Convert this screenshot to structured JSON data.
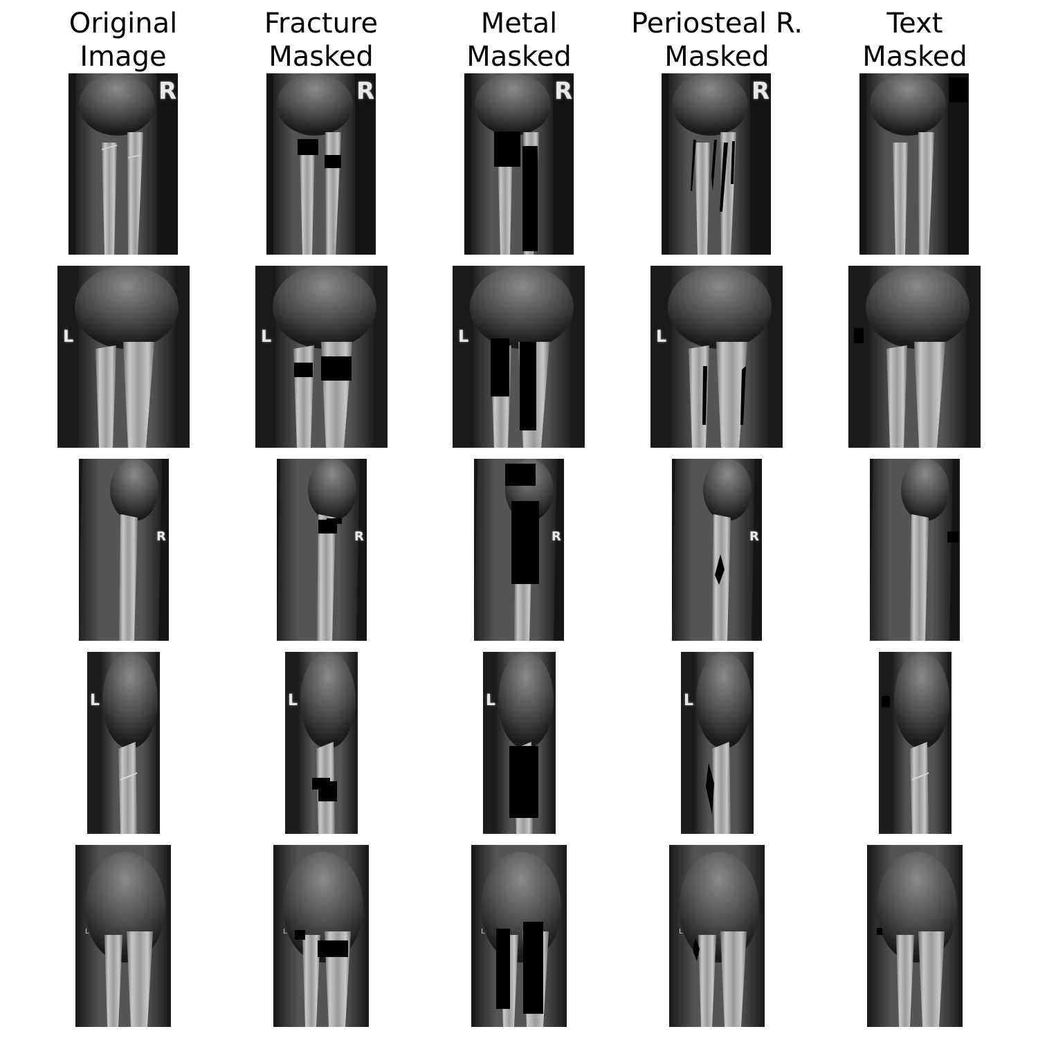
{
  "columns": [
    {
      "line1": "Original",
      "line2": "Image"
    },
    {
      "line1": "Fracture",
      "line2": "Masked"
    },
    {
      "line1": "Metal",
      "line2": "Masked"
    },
    {
      "line1": "Periosteal R.",
      "line2": "Masked"
    },
    {
      "line1": "Text",
      "line2": "Masked"
    }
  ],
  "rows": [
    {
      "marker": "R",
      "description": "Wrist X-ray, PA view, right"
    },
    {
      "marker": "L",
      "description": "Wrist X-ray, PA view, left"
    },
    {
      "marker": "R",
      "description": "Wrist X-ray, lateral view, right"
    },
    {
      "marker": "L",
      "description": "Wrist X-ray, lateral view, left"
    },
    {
      "marker": "L",
      "description": "Wrist X-ray, PA view, left"
    }
  ]
}
